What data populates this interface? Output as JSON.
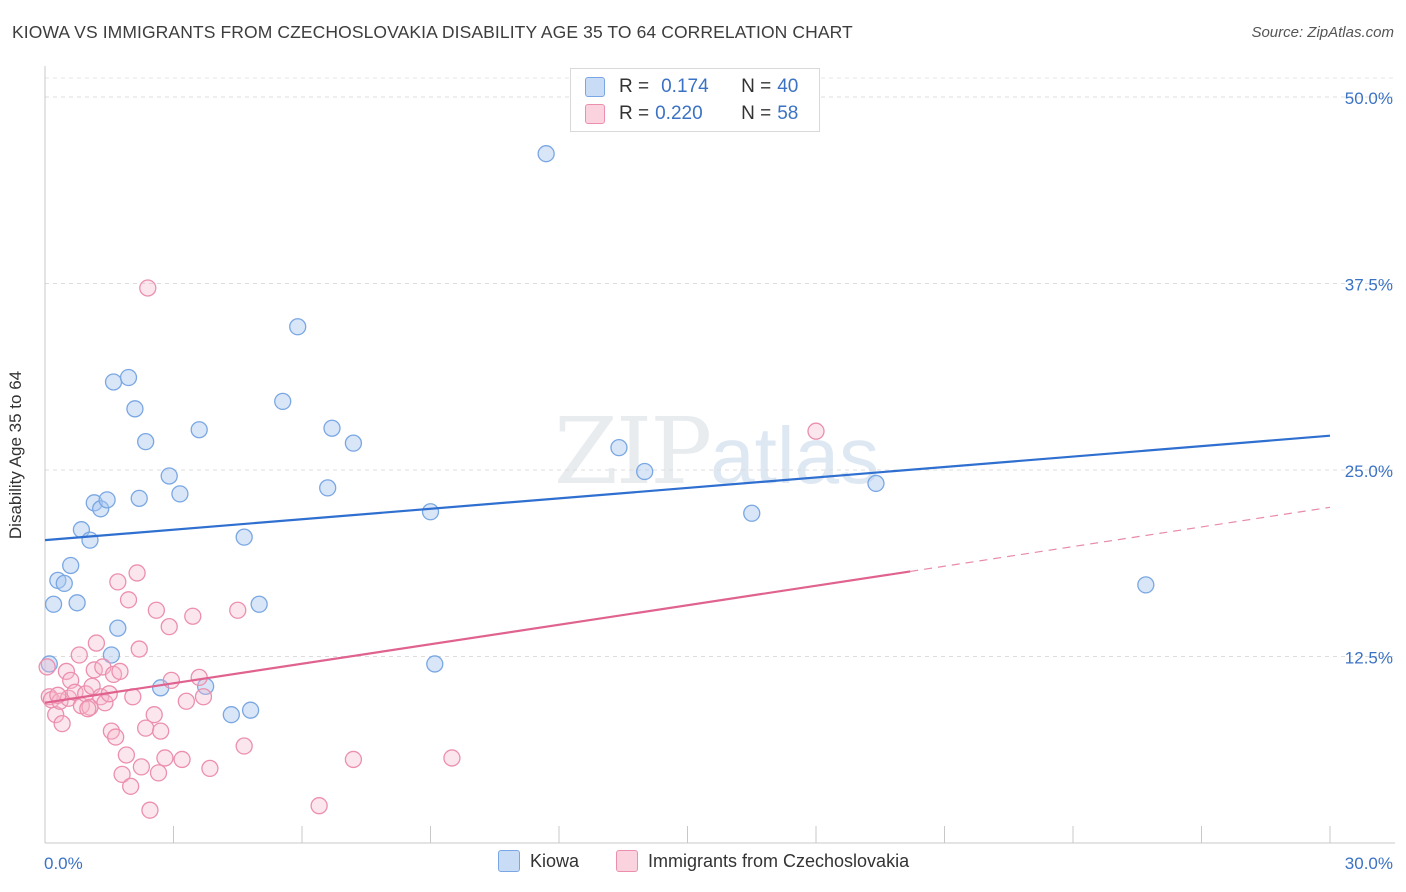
{
  "title": "KIOWA VS IMMIGRANTS FROM CZECHOSLOVAKIA DISABILITY AGE 35 TO 64 CORRELATION CHART",
  "source": "Source: ZipAtlas.com",
  "watermark": {
    "zip": "ZIP",
    "atlas": "atlas"
  },
  "legend_top": [
    {
      "r_label": "R =",
      "r_value": "0.174",
      "n_label": "N =",
      "n_value": "40",
      "color": "#a9c8f0"
    },
    {
      "r_label": "R =",
      "r_value": "0.220",
      "n_label": "N =",
      "n_value": "58",
      "color": "#f5b8cb"
    }
  ],
  "legend_bottom": [
    {
      "label": "Kiowa",
      "color": "#a9c8f0"
    },
    {
      "label": "Immigrants from Czechoslovakia",
      "color": "#f5b8cb"
    }
  ],
  "chart_data": {
    "type": "scatter",
    "title": "KIOWA VS IMMIGRANTS FROM CZECHOSLOVAKIA DISABILITY AGE 35 TO 64 CORRELATION CHART",
    "xlabel": "",
    "ylabel": "Disability Age 35 to 64",
    "xlim": [
      0,
      30
    ],
    "ylim": [
      0,
      50
    ],
    "x_ticks": [
      0,
      3,
      6,
      9,
      12,
      15,
      18,
      21,
      24,
      27,
      30
    ],
    "x_tick_labels": {
      "0": "0.0%",
      "30": "30.0%"
    },
    "y_ticks": [
      12.5,
      25.0,
      37.5,
      50.0
    ],
    "y_tick_labels": [
      "12.5%",
      "25.0%",
      "37.5%",
      "50.0%"
    ],
    "grid": true,
    "legend_position": "top-center",
    "series": [
      {
        "name": "Kiowa",
        "color": "#6b9fe0",
        "fill": "#a9c8f0",
        "trend": {
          "x0": 0,
          "y0": 20.3,
          "x1": 30,
          "y1": 27.3,
          "dashed_from": null
        },
        "points": [
          [
            0.1,
            12.0
          ],
          [
            0.2,
            16.0
          ],
          [
            0.3,
            17.6
          ],
          [
            0.45,
            17.4
          ],
          [
            0.6,
            18.6
          ],
          [
            0.75,
            16.1
          ],
          [
            0.85,
            21.0
          ],
          [
            1.05,
            20.3
          ],
          [
            1.15,
            22.8
          ],
          [
            1.3,
            22.4
          ],
          [
            1.45,
            23.0
          ],
          [
            1.55,
            12.6
          ],
          [
            1.6,
            30.9
          ],
          [
            1.7,
            14.4
          ],
          [
            1.95,
            31.2
          ],
          [
            2.1,
            29.1
          ],
          [
            2.2,
            23.1
          ],
          [
            2.35,
            26.9
          ],
          [
            2.7,
            10.4
          ],
          [
            2.9,
            24.6
          ],
          [
            3.6,
            27.7
          ],
          [
            3.15,
            23.4
          ],
          [
            3.75,
            10.5
          ],
          [
            4.35,
            8.6
          ],
          [
            4.65,
            20.5
          ],
          [
            4.8,
            8.9
          ],
          [
            5.0,
            16.0
          ],
          [
            5.55,
            29.6
          ],
          [
            5.9,
            34.6
          ],
          [
            6.6,
            23.8
          ],
          [
            6.7,
            27.8
          ],
          [
            7.2,
            26.8
          ],
          [
            9.0,
            22.2
          ],
          [
            9.1,
            12.0
          ],
          [
            11.7,
            46.2
          ],
          [
            13.4,
            26.5
          ],
          [
            14.0,
            24.9
          ],
          [
            16.5,
            22.1
          ],
          [
            19.4,
            24.1
          ],
          [
            25.7,
            17.3
          ]
        ]
      },
      {
        "name": "Immigrants from Czechoslovakia",
        "color": "#e66a95",
        "fill": "#f5b8cb",
        "trend": {
          "x0": 0,
          "y0": 9.4,
          "x1": 20.2,
          "y1": 18.2,
          "dashed_to": 30,
          "dashed_y": 22.5
        },
        "points": [
          [
            0.05,
            11.8
          ],
          [
            0.1,
            9.8
          ],
          [
            0.15,
            9.6
          ],
          [
            0.25,
            8.6
          ],
          [
            0.35,
            9.5
          ],
          [
            0.4,
            8.0
          ],
          [
            0.5,
            11.5
          ],
          [
            0.55,
            9.7
          ],
          [
            0.6,
            10.9
          ],
          [
            0.7,
            10.1
          ],
          [
            0.8,
            12.6
          ],
          [
            0.85,
            9.2
          ],
          [
            0.95,
            10.0
          ],
          [
            1.05,
            9.1
          ],
          [
            1.1,
            10.5
          ],
          [
            1.15,
            11.6
          ],
          [
            1.2,
            13.4
          ],
          [
            1.3,
            9.8
          ],
          [
            1.35,
            11.8
          ],
          [
            1.4,
            9.4
          ],
          [
            1.5,
            10.0
          ],
          [
            1.55,
            7.5
          ],
          [
            1.6,
            11.3
          ],
          [
            1.65,
            7.1
          ],
          [
            1.7,
            17.5
          ],
          [
            1.75,
            11.5
          ],
          [
            1.8,
            4.6
          ],
          [
            1.9,
            5.9
          ],
          [
            1.95,
            16.3
          ],
          [
            2.0,
            3.8
          ],
          [
            2.05,
            9.8
          ],
          [
            2.15,
            18.1
          ],
          [
            2.2,
            13.0
          ],
          [
            2.25,
            5.1
          ],
          [
            2.35,
            7.7
          ],
          [
            2.4,
            37.2
          ],
          [
            2.45,
            2.2
          ],
          [
            2.55,
            8.6
          ],
          [
            2.6,
            15.6
          ],
          [
            2.65,
            4.7
          ],
          [
            2.7,
            7.5
          ],
          [
            2.8,
            5.7
          ],
          [
            2.9,
            14.5
          ],
          [
            2.95,
            10.9
          ],
          [
            3.2,
            5.6
          ],
          [
            3.3,
            9.5
          ],
          [
            3.45,
            15.2
          ],
          [
            3.6,
            11.1
          ],
          [
            3.7,
            9.8
          ],
          [
            3.85,
            5.0
          ],
          [
            4.5,
            15.6
          ],
          [
            4.65,
            6.5
          ],
          [
            6.4,
            2.5
          ],
          [
            7.2,
            5.6
          ],
          [
            9.5,
            5.7
          ],
          [
            18.0,
            27.6
          ],
          [
            0.3,
            9.9
          ],
          [
            1.0,
            9.0
          ]
        ]
      }
    ]
  }
}
